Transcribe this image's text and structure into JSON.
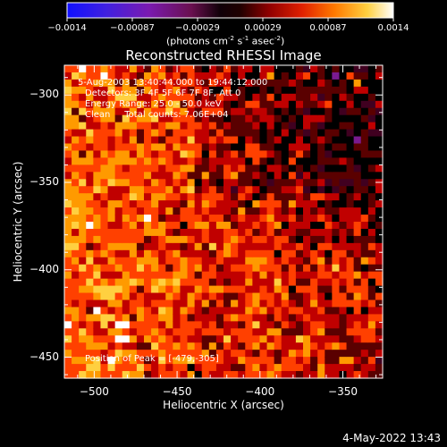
{
  "colorbar": {
    "tick_labels": [
      "-0.0014",
      "-0.00087",
      "-0.00029",
      "0.00029",
      "0.00087",
      "0.0014"
    ],
    "units": "(photons cm",
    "units_sup1": "-2",
    "units_mid": " s",
    "units_sup2": "-1",
    "units_mid2": " asec",
    "units_sup3": "-2",
    "units_end": ")"
  },
  "annotations": {
    "time_range": "5-Aug-2003 13:40:44.000 to 19:44:12.000",
    "detectors": "Detectors: 3F 4F 5F 6F 7F 8F, Att 0",
    "energy_range": "Energy Range: 25.0 - 50.0 keV",
    "method": "Clean     Total counts: 7.06E+04",
    "peak": "Position of Peak = [-479,-305]"
  },
  "footer": {
    "date": "4-May-2022 13:43"
  },
  "colors": {
    "colormap": [
      "#1010ff",
      "#5a10d0",
      "#7a1a90",
      "#400020",
      "#000000",
      "#5a0000",
      "#c00000",
      "#ff4000",
      "#ff9a00",
      "#ffd040",
      "#ffffff"
    ],
    "axes": "#ffffff",
    "background": "#000000"
  },
  "chart_data": {
    "type": "heatmap",
    "title": "Reconstructed RHESSI Image",
    "xlabel": "Heliocentric X (arcsec)",
    "ylabel": "Heliocentric Y (arcsec)",
    "xlim": [
      -518,
      -326
    ],
    "ylim": [
      -462,
      -283
    ],
    "x_ticks": [
      -500,
      -450,
      -400,
      -350
    ],
    "y_ticks": [
      -300,
      -350,
      -400,
      -450
    ],
    "x_tick_labels": [
      "−500",
      "−450",
      "−400",
      "−350"
    ],
    "y_tick_labels": [
      "−300",
      "−350",
      "−400",
      "−450"
    ],
    "value_range": [
      -0.0014,
      0.0014
    ],
    "peak_position": [
      -479,
      -305
    ],
    "grid": false
  }
}
